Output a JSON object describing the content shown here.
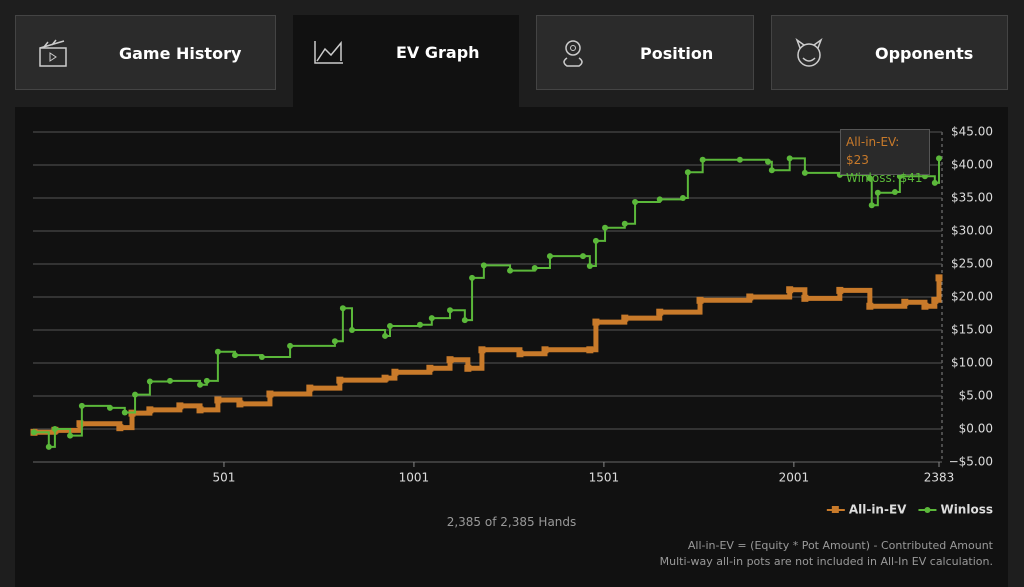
{
  "tabs": [
    "Game History",
    "EV Graph",
    "Position",
    "Opponents"
  ],
  "chart_data": {
    "type": "line",
    "xlim": [
      1,
      2383
    ],
    "xticks": [
      501,
      1001,
      1501,
      2001,
      2383
    ],
    "ylim": [
      -5,
      45
    ],
    "yticks": [
      {
        "value": 45,
        "label": "$45.00"
      },
      {
        "value": 40,
        "label": "$40.00"
      },
      {
        "value": 35,
        "label": "$35.00"
      },
      {
        "value": 30,
        "label": "$30.00"
      },
      {
        "value": 25,
        "label": "$25.00"
      },
      {
        "value": 20,
        "label": "$20.00"
      },
      {
        "value": 15,
        "label": "$15.00"
      },
      {
        "value": 10,
        "label": "$10.00"
      },
      {
        "value": 5,
        "label": "$5.00"
      },
      {
        "value": 0,
        "label": "$0.00"
      },
      {
        "value": -5,
        "label": "−$5.00"
      }
    ],
    "grid": true,
    "legend": "bottom-right",
    "series": [
      {
        "name": "All-in-EV",
        "color": "#c87a2a",
        "x": [
          1,
          56,
          122,
          227,
          259,
          306,
          385,
          438,
          485,
          543,
          622,
          727,
          806,
          925,
          951,
          1043,
          1096,
          1143,
          1180,
          1280,
          1346,
          1464,
          1480,
          1556,
          1648,
          1754,
          1885,
          1990,
          2030,
          2122,
          2201,
          2293,
          2346,
          2372,
          2383
        ],
        "values": [
          -0.5,
          -0.2,
          0.8,
          0.2,
          2.4,
          2.9,
          3.5,
          2.9,
          4.4,
          3.8,
          5.3,
          6.2,
          7.4,
          7.7,
          8.6,
          9.2,
          10.5,
          9.2,
          12,
          11.4,
          12,
          12,
          16.2,
          16.8,
          17.7,
          19.5,
          20,
          21.1,
          19.8,
          21,
          18.6,
          19.2,
          18.6,
          19.5,
          22.9
        ]
      },
      {
        "name": "Winloss",
        "color": "#5bb83a",
        "x": [
          1,
          40,
          56,
          96,
          127,
          201,
          240,
          267,
          306,
          359,
          438,
          456,
          485,
          530,
          601,
          675,
          793,
          814,
          838,
          925,
          938,
          1017,
          1048,
          1096,
          1135,
          1154,
          1185,
          1254,
          1319,
          1359,
          1446,
          1464,
          1480,
          1504,
          1556,
          1583,
          1648,
          1709,
          1722,
          1761,
          1859,
          1933,
          1943,
          1990,
          2030,
          2122,
          2201,
          2206,
          2222,
          2267,
          2280,
          2346,
          2372,
          2383
        ],
        "values": [
          -0.5,
          -2.7,
          0,
          -1,
          3.5,
          3.2,
          2.5,
          5.2,
          7.2,
          7.3,
          6.7,
          7.3,
          11.7,
          11.2,
          10.9,
          12.6,
          13.3,
          18.3,
          15,
          14.1,
          15.6,
          15.8,
          16.8,
          18,
          16.5,
          22.9,
          24.8,
          24,
          24.4,
          26.2,
          26.2,
          24.7,
          28.5,
          30.5,
          31.1,
          34.4,
          34.8,
          35,
          38.9,
          40.8,
          40.8,
          40.5,
          39.2,
          41,
          38.8,
          38.5,
          38,
          33.9,
          35.8,
          35.9,
          38.3,
          38.3,
          37.3,
          41
        ]
      }
    ],
    "tooltip": [
      "All-in-EV: $23",
      "Winloss: $41"
    ]
  },
  "hands": "2,385 of 2,385 Hands",
  "notes": [
    "All-in-EV = (Equity * Pot Amount) - Contributed Amount",
    "Multi-way all-in pots are not included in All-In EV calculation."
  ]
}
